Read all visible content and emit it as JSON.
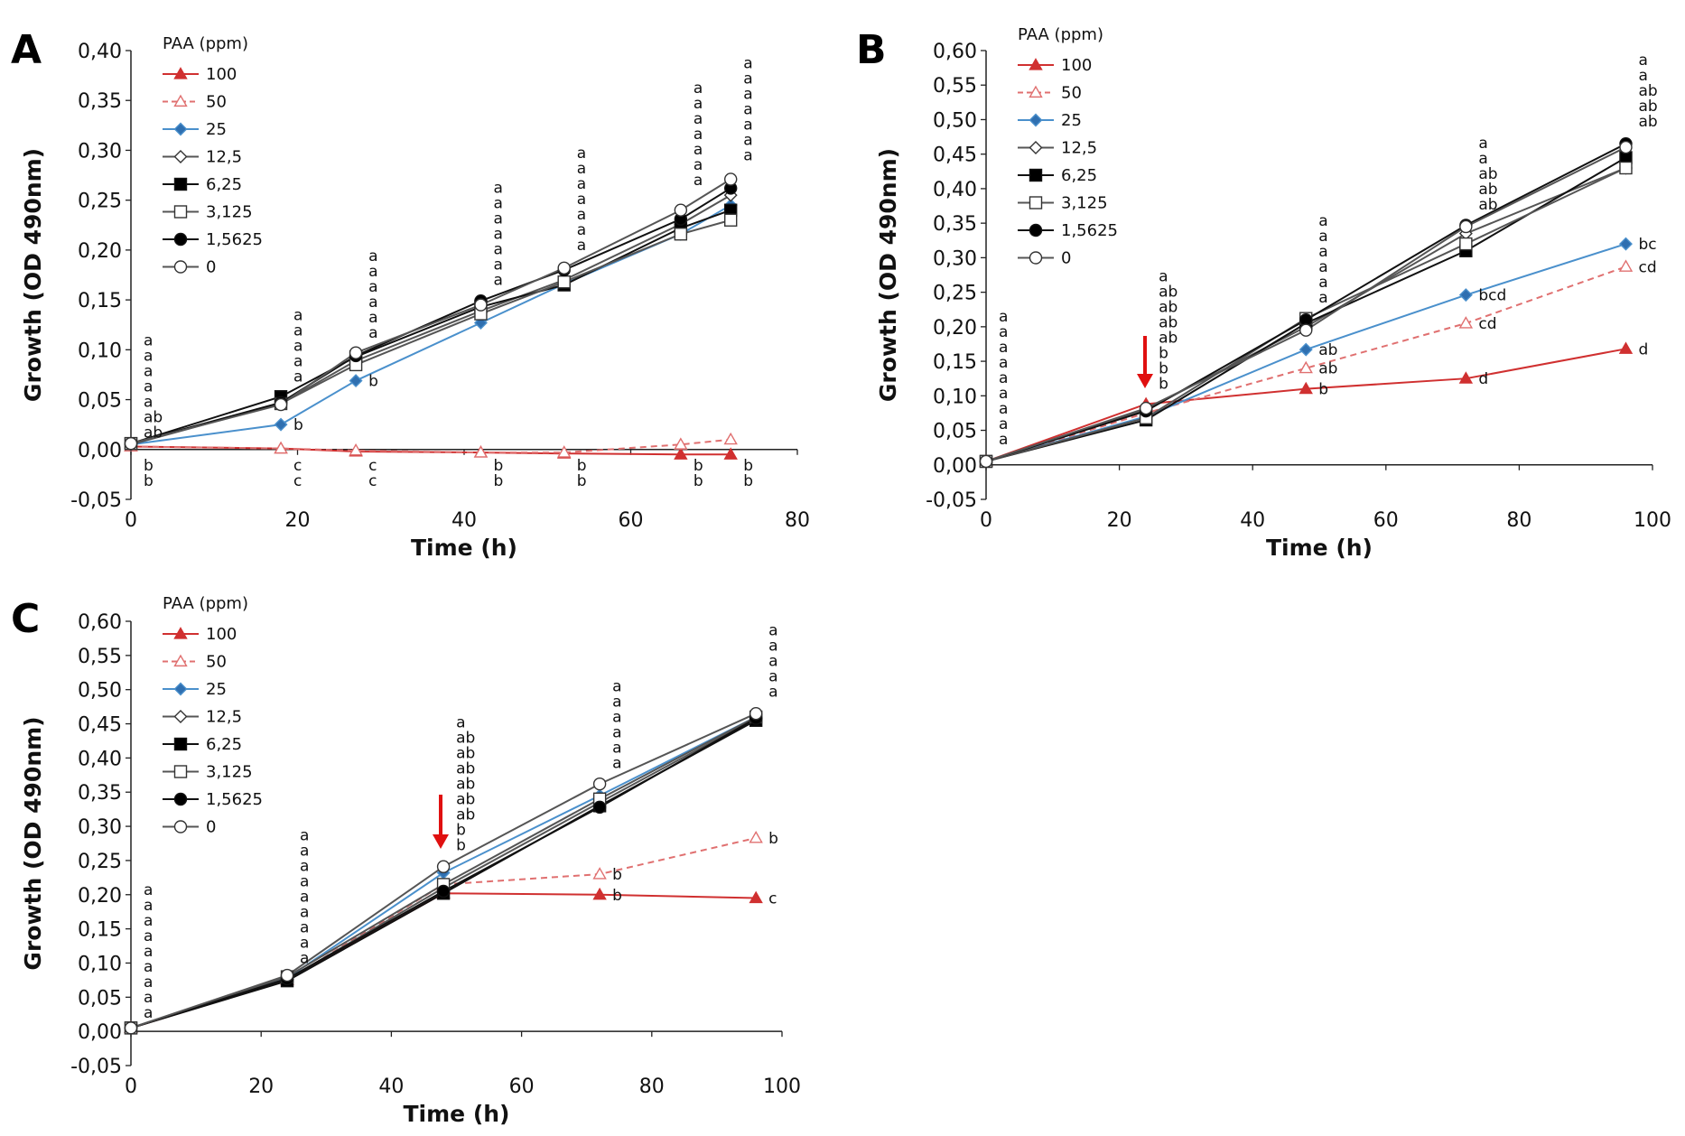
{
  "series_styles": [
    {
      "name": "100",
      "color": "#d03030",
      "marker": "tri",
      "fill": "#d03030",
      "dash": false
    },
    {
      "name": "50",
      "color": "#e07070",
      "marker": "tri",
      "fill": "#ffffff",
      "dash": true
    },
    {
      "name": "25",
      "color": "#4a90cc",
      "marker": "diamond",
      "fill": "#2f6fb0",
      "dash": false
    },
    {
      "name": "12,5",
      "color": "#555555",
      "marker": "diamond",
      "fill": "#ffffff",
      "dash": false
    },
    {
      "name": "6,25",
      "color": "#111111",
      "marker": "square",
      "fill": "#000000",
      "dash": false
    },
    {
      "name": "3,125",
      "color": "#555555",
      "marker": "square",
      "fill": "#ffffff",
      "dash": false
    },
    {
      "name": "1,5625",
      "color": "#111111",
      "marker": "circle",
      "fill": "#000000",
      "dash": false
    },
    {
      "name": "0",
      "color": "#555555",
      "marker": "circle",
      "fill": "#ffffff",
      "dash": false
    }
  ],
  "chart_data": [
    {
      "type": "line",
      "panel_label": "A",
      "legend_title": "PAA (ppm)",
      "xlabel": "Time (h)",
      "ylabel": "Growth (OD 490nm)",
      "xlim": [
        0,
        80
      ],
      "ylim": [
        -0.05,
        0.4
      ],
      "x_ticks": [
        "0",
        "20",
        "40",
        "60",
        "80"
      ],
      "y_ticks": [
        "-0,05",
        "0,00",
        "0,05",
        "0,10",
        "0,15",
        "0,20",
        "0,25",
        "0,30",
        "0,35",
        "0,40"
      ],
      "x": [
        0,
        18,
        27,
        42,
        52,
        66,
        72
      ],
      "series": [
        {
          "name": "100",
          "values": [
            0.003,
            0.001,
            -0.002,
            -0.003,
            -0.004,
            -0.005,
            -0.005
          ]
        },
        {
          "name": "50",
          "values": [
            0.003,
            0.001,
            -0.001,
            -0.003,
            -0.003,
            0.005,
            0.01
          ]
        },
        {
          "name": "25",
          "values": [
            0.005,
            0.025,
            0.069,
            0.127,
            0.166,
            0.216,
            0.245
          ]
        },
        {
          "name": "12,5",
          "values": [
            0.005,
            0.046,
            0.089,
            0.139,
            0.17,
            0.226,
            0.255
          ]
        },
        {
          "name": "6,25",
          "values": [
            0.006,
            0.053,
            0.093,
            0.143,
            0.165,
            0.222,
            0.24
          ]
        },
        {
          "name": "3,125",
          "values": [
            0.006,
            0.046,
            0.085,
            0.136,
            0.168,
            0.216,
            0.23
          ]
        },
        {
          "name": "1,5625",
          "values": [
            0.006,
            0.047,
            0.094,
            0.149,
            0.18,
            0.231,
            0.262
          ]
        },
        {
          "name": "0",
          "values": [
            0.006,
            0.045,
            0.097,
            0.145,
            0.182,
            0.24,
            0.271
          ]
        }
      ],
      "annotations": [
        {
          "x": 0,
          "y": 0.012,
          "text": [
            "a",
            "a",
            "a",
            "a",
            "a",
            "ab",
            "ab"
          ]
        },
        {
          "x": 18,
          "y": 0.068,
          "text": [
            "a",
            "a",
            "a",
            "a",
            "a"
          ]
        },
        {
          "x": 27,
          "y": 0.112,
          "text": [
            "a",
            "a",
            "a",
            "a",
            "a",
            "a"
          ]
        },
        {
          "x": 42,
          "y": 0.165,
          "text": [
            "a",
            "a",
            "a",
            "a",
            "a",
            "a",
            "a"
          ]
        },
        {
          "x": 52,
          "y": 0.2,
          "text": [
            "a",
            "a",
            "a",
            "a",
            "a",
            "a",
            "a"
          ]
        },
        {
          "x": 66,
          "y": 0.265,
          "text": [
            "a",
            "a",
            "a",
            "a",
            "a",
            "a",
            "a"
          ]
        },
        {
          "x": 72,
          "y": 0.29,
          "text": [
            "a",
            "a",
            "a",
            "a",
            "a",
            "a",
            "a"
          ]
        },
        {
          "x": 18,
          "y": 0.025,
          "text": [
            "b"
          ]
        },
        {
          "x": 27,
          "y": 0.069,
          "text": [
            "b"
          ]
        },
        {
          "x": 0,
          "y": -0.012,
          "text": [
            "b",
            "b"
          ]
        },
        {
          "x": 18,
          "y": -0.012,
          "text": [
            "c",
            "c"
          ]
        },
        {
          "x": 27,
          "y": -0.012,
          "text": [
            "c",
            "c"
          ]
        },
        {
          "x": 42,
          "y": -0.012,
          "text": [
            "b",
            "b"
          ]
        },
        {
          "x": 52,
          "y": -0.012,
          "text": [
            "b",
            "b"
          ]
        },
        {
          "x": 66,
          "y": -0.012,
          "text": [
            "b",
            "b"
          ]
        },
        {
          "x": 72,
          "y": -0.012,
          "text": [
            "b",
            "b"
          ]
        }
      ]
    },
    {
      "type": "line",
      "panel_label": "B",
      "legend_title": "PAA (ppm)",
      "xlabel": "Time (h)",
      "ylabel": "Growth (OD 490nm)",
      "xlim": [
        0,
        100
      ],
      "ylim": [
        -0.05,
        0.6
      ],
      "x_ticks": [
        "0",
        "20",
        "40",
        "60",
        "80",
        "100"
      ],
      "y_ticks": [
        "-0,05",
        "0,00",
        "0,05",
        "0,10",
        "0,15",
        "0,20",
        "0,25",
        "0,30",
        "0,35",
        "0,40",
        "0,45",
        "0,50",
        "0,55",
        "0,60"
      ],
      "x": [
        0,
        24,
        48,
        72,
        96
      ],
      "series": [
        {
          "name": "100",
          "values": [
            0.005,
            0.088,
            0.11,
            0.125,
            0.168
          ]
        },
        {
          "name": "50",
          "values": [
            0.005,
            0.075,
            0.14,
            0.205,
            0.287
          ]
        },
        {
          "name": "25",
          "values": [
            0.005,
            0.07,
            0.167,
            0.246,
            0.32
          ]
        },
        {
          "name": "12,5",
          "values": [
            0.005,
            0.08,
            0.2,
            0.335,
            0.43
          ]
        },
        {
          "name": "6,25",
          "values": [
            0.005,
            0.065,
            0.205,
            0.31,
            0.445
          ]
        },
        {
          "name": "3,125",
          "values": [
            0.005,
            0.068,
            0.212,
            0.32,
            0.43
          ]
        },
        {
          "name": "1,5625",
          "values": [
            0.005,
            0.078,
            0.21,
            0.347,
            0.465
          ]
        },
        {
          "name": "0",
          "values": [
            0.005,
            0.082,
            0.195,
            0.345,
            0.46
          ]
        }
      ],
      "annotations": [
        {
          "x": 0,
          "y": 0.03,
          "text": [
            "a",
            "a",
            "a",
            "a",
            "a",
            "a",
            "a",
            "a",
            "a"
          ]
        },
        {
          "x": 24,
          "y": 0.11,
          "text": [
            "a",
            "ab",
            "ab",
            "ab",
            "ab",
            "b",
            "b",
            "b"
          ]
        },
        {
          "x": 48,
          "y": 0.235,
          "text": [
            "a",
            "a",
            "a",
            "a",
            "a",
            "a"
          ]
        },
        {
          "x": 72,
          "y": 0.37,
          "text": [
            "a",
            "a",
            "ab",
            "ab",
            "ab"
          ]
        },
        {
          "x": 96,
          "y": 0.49,
          "text": [
            "a",
            "a",
            "ab",
            "ab",
            "ab"
          ]
        },
        {
          "x": 48,
          "y": 0.167,
          "text": [
            "ab"
          ]
        },
        {
          "x": 48,
          "y": 0.14,
          "text": [
            "ab"
          ]
        },
        {
          "x": 48,
          "y": 0.11,
          "text": [
            "b"
          ]
        },
        {
          "x": 72,
          "y": 0.246,
          "text": [
            "bcd"
          ]
        },
        {
          "x": 72,
          "y": 0.205,
          "text": [
            "cd"
          ]
        },
        {
          "x": 72,
          "y": 0.125,
          "text": [
            "d"
          ]
        },
        {
          "x": 96,
          "y": 0.32,
          "text": [
            "bc"
          ]
        },
        {
          "x": 96,
          "y": 0.287,
          "text": [
            "cd"
          ]
        },
        {
          "x": 96,
          "y": 0.168,
          "text": [
            "d"
          ]
        }
      ]
    },
    {
      "type": "line",
      "panel_label": "C",
      "legend_title": "PAA (ppm)",
      "xlabel": "Time (h)",
      "ylabel": "Growth (OD 490nm)",
      "xlim": [
        0,
        100
      ],
      "ylim": [
        -0.05,
        0.6
      ],
      "x_ticks": [
        "0",
        "20",
        "40",
        "60",
        "80",
        "100"
      ],
      "y_ticks": [
        "-0,05",
        "0,00",
        "0,05",
        "0,10",
        "0,15",
        "0,20",
        "0,25",
        "0,30",
        "0,35",
        "0,40",
        "0,45",
        "0,50",
        "0,55",
        "0,60"
      ],
      "x": [
        0,
        24,
        48,
        72,
        96
      ],
      "series": [
        {
          "name": "100",
          "values": [
            0.005,
            0.075,
            0.202,
            0.2,
            0.195
          ]
        },
        {
          "name": "50",
          "values": [
            0.005,
            0.075,
            0.215,
            0.23,
            0.283
          ]
        },
        {
          "name": "25",
          "values": [
            0.005,
            0.078,
            0.232,
            0.345,
            0.46
          ]
        },
        {
          "name": "12,5",
          "values": [
            0.005,
            0.076,
            0.21,
            0.335,
            0.458
          ]
        },
        {
          "name": "6,25",
          "values": [
            0.005,
            0.074,
            0.202,
            0.33,
            0.455
          ]
        },
        {
          "name": "3,125",
          "values": [
            0.005,
            0.08,
            0.215,
            0.34,
            0.46
          ]
        },
        {
          "name": "1,5625",
          "values": [
            0.005,
            0.077,
            0.205,
            0.328,
            0.458
          ]
        },
        {
          "name": "0",
          "values": [
            0.005,
            0.082,
            0.241,
            0.362,
            0.465
          ]
        }
      ],
      "annotations": [
        {
          "x": 0,
          "y": 0.02,
          "text": [
            "a",
            "a",
            "a",
            "a",
            "a",
            "a",
            "a",
            "a",
            "a"
          ]
        },
        {
          "x": 24,
          "y": 0.1,
          "text": [
            "a",
            "a",
            "a",
            "a",
            "a",
            "a",
            "a",
            "a",
            "a"
          ]
        },
        {
          "x": 48,
          "y": 0.265,
          "text": [
            "a",
            "ab",
            "ab",
            "ab",
            "ab",
            "ab",
            "ab",
            "b",
            "b"
          ]
        },
        {
          "x": 72,
          "y": 0.385,
          "text": [
            "a",
            "a",
            "a",
            "a",
            "a",
            "a"
          ]
        },
        {
          "x": 96,
          "y": 0.49,
          "text": [
            "a",
            "a",
            "a",
            "a",
            "a"
          ]
        },
        {
          "x": 72,
          "y": 0.23,
          "text": [
            "b"
          ]
        },
        {
          "x": 72,
          "y": 0.2,
          "text": [
            "b"
          ]
        },
        {
          "x": 96,
          "y": 0.283,
          "text": [
            "b"
          ]
        },
        {
          "x": 96,
          "y": 0.195,
          "text": [
            "c"
          ]
        }
      ]
    }
  ]
}
